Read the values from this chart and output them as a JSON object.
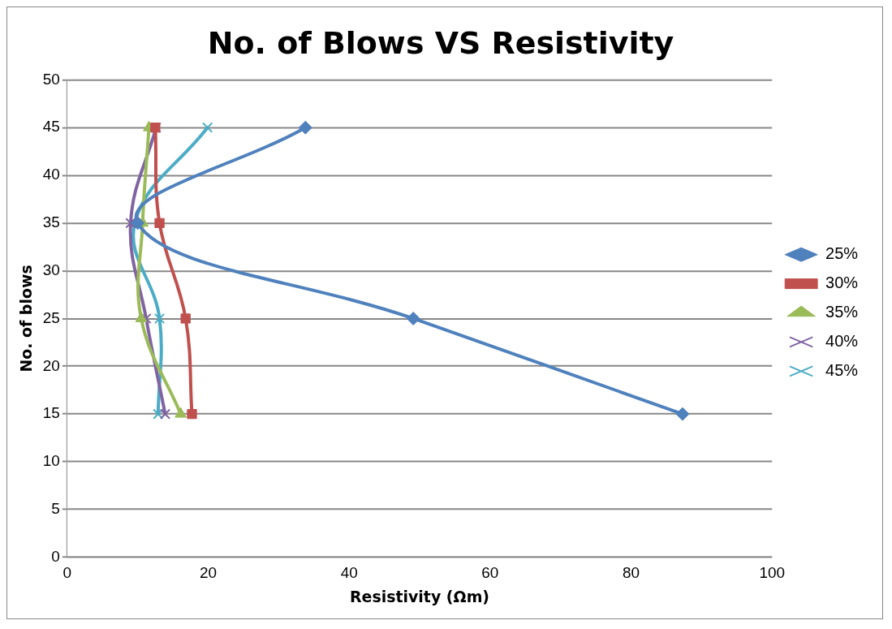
{
  "chart_data": {
    "type": "line",
    "title": "No. of Blows VS Resistivity",
    "xlabel": "Resistivity (Ωm)",
    "ylabel": "No. of blows",
    "xlim": [
      0,
      100
    ],
    "xticks": [
      0,
      20,
      40,
      60,
      80,
      100
    ],
    "ylim": [
      0,
      50
    ],
    "yticks": [
      0,
      5,
      10,
      15,
      20,
      25,
      30,
      35,
      40,
      45,
      50
    ],
    "grid": "y",
    "legend": "right",
    "line_style": "solid",
    "series": [
      {
        "name": "25%",
        "color": "#4f81bd",
        "marker": "diamond",
        "x": [
          87.3,
          49.1,
          10.0,
          33.8
        ],
        "values": [
          15,
          25,
          35,
          45
        ]
      },
      {
        "name": "30%",
        "color": "#c0504d",
        "marker": "square",
        "x": [
          17.7,
          16.8,
          13.1,
          12.5
        ],
        "values": [
          15,
          25,
          35,
          45
        ]
      },
      {
        "name": "35%",
        "color": "#9bbb59",
        "marker": "triangle",
        "x": [
          16.1,
          10.5,
          10.7,
          11.6
        ],
        "values": [
          15,
          25,
          35,
          45
        ]
      },
      {
        "name": "40%",
        "color": "#8064a2",
        "marker": "cross",
        "x": [
          13.9,
          11.2,
          9.0,
          12.6
        ],
        "values": [
          15,
          25,
          35,
          45
        ]
      },
      {
        "name": "45%",
        "color": "#4bacc6",
        "marker": "cross",
        "x": [
          12.9,
          13.1,
          9.6,
          19.9
        ],
        "values": [
          15,
          25,
          35,
          45
        ]
      }
    ]
  }
}
